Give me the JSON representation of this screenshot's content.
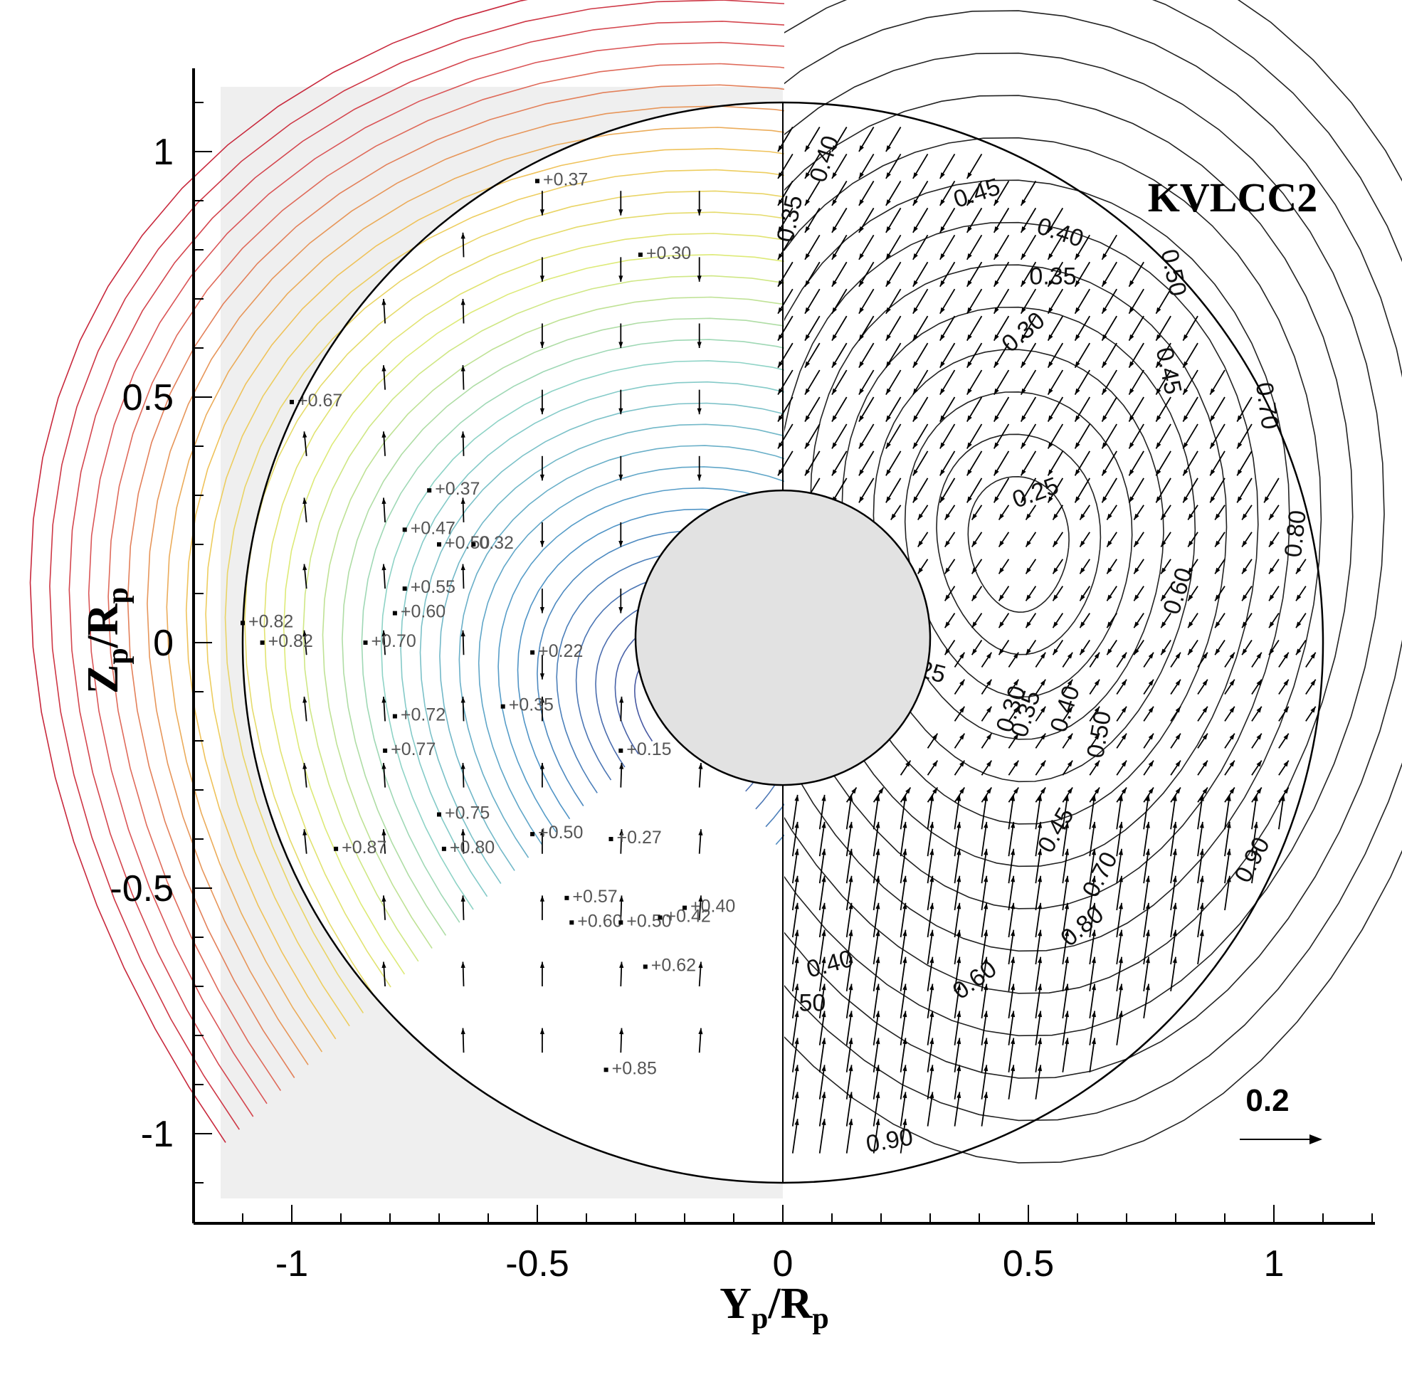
{
  "chart_data": {
    "type": "contour",
    "title": "KVLCC2",
    "xlabel_main": "Y",
    "xlabel_sub1": "p",
    "xlabel_mid": "/R",
    "xlabel_sub2": "p",
    "ylabel_main": "Z",
    "ylabel_sub1": "p",
    "ylabel_mid": "/R",
    "ylabel_sub2": "p",
    "xlim": [
      -1.2,
      1.2
    ],
    "ylim": [
      -1.17,
      1.17
    ],
    "x_ticks": [
      -1,
      -0.5,
      0,
      0.5,
      1
    ],
    "x_tick_labels": [
      "-1",
      "-0.5",
      "0",
      "0.5",
      "1"
    ],
    "y_ticks": [
      -1,
      -0.5,
      0,
      0.5,
      1
    ],
    "y_tick_labels": [
      "-1",
      "-0.5",
      "0",
      "0.5",
      "1"
    ],
    "propeller_disk_radius": 1.1,
    "hub_radius": 0.3,
    "vector_scale_label": "0.2",
    "left_half_point_labels": [
      {
        "x": -0.5,
        "y": 0.94,
        "label": "+0.37"
      },
      {
        "x": -0.29,
        "y": 0.79,
        "label": "+0.30"
      },
      {
        "x": -1.0,
        "y": 0.49,
        "label": "+0.67"
      },
      {
        "x": -0.72,
        "y": 0.31,
        "label": "+0.37"
      },
      {
        "x": -0.77,
        "y": 0.23,
        "label": "+0.47"
      },
      {
        "x": -0.7,
        "y": 0.2,
        "label": "+0.50"
      },
      {
        "x": -0.63,
        "y": 0.2,
        "label": "0.32"
      },
      {
        "x": -0.77,
        "y": 0.11,
        "label": "+0.55"
      },
      {
        "x": -0.79,
        "y": 0.06,
        "label": "+0.60"
      },
      {
        "x": -1.1,
        "y": 0.04,
        "label": "+0.82"
      },
      {
        "x": -1.06,
        "y": 0.0,
        "label": "+0.82"
      },
      {
        "x": -0.85,
        "y": 0.0,
        "label": "+0.70"
      },
      {
        "x": -0.51,
        "y": -0.02,
        "label": "+0.22"
      },
      {
        "x": -0.79,
        "y": -0.15,
        "label": "+0.72"
      },
      {
        "x": -0.57,
        "y": -0.13,
        "label": "+0.35"
      },
      {
        "x": -0.81,
        "y": -0.22,
        "label": "+0.77"
      },
      {
        "x": -0.33,
        "y": -0.22,
        "label": "+0.15"
      },
      {
        "x": -0.7,
        "y": -0.35,
        "label": "+0.75"
      },
      {
        "x": -0.91,
        "y": -0.42,
        "label": "+0.87"
      },
      {
        "x": -0.69,
        "y": -0.42,
        "label": "+0.80"
      },
      {
        "x": -0.51,
        "y": -0.39,
        "label": "+0.50"
      },
      {
        "x": -0.35,
        "y": -0.4,
        "label": "+0.27"
      },
      {
        "x": -0.44,
        "y": -0.52,
        "label": "+0.57"
      },
      {
        "x": -0.43,
        "y": -0.57,
        "label": "+0.60"
      },
      {
        "x": -0.33,
        "y": -0.57,
        "label": "+0.50"
      },
      {
        "x": -0.25,
        "y": -0.56,
        "label": "+0.42"
      },
      {
        "x": -0.2,
        "y": -0.54,
        "label": "+0.40"
      },
      {
        "x": -0.28,
        "y": -0.66,
        "label": "+0.62"
      },
      {
        "x": -0.36,
        "y": -0.87,
        "label": "+0.85"
      }
    ],
    "right_half_contour_labels": [
      {
        "x": 0.1,
        "y": 0.98,
        "label": "0.40",
        "angle": -72
      },
      {
        "x": 0.03,
        "y": 0.86,
        "label": "0.35",
        "angle": -78
      },
      {
        "x": 0.4,
        "y": 0.9,
        "label": "0.45",
        "angle": -18
      },
      {
        "x": 0.56,
        "y": 0.82,
        "label": "0.40",
        "angle": 18
      },
      {
        "x": 0.55,
        "y": 0.73,
        "label": "0.35",
        "angle": 0
      },
      {
        "x": 0.5,
        "y": 0.62,
        "label": "0.30",
        "angle": -40
      },
      {
        "x": 0.78,
        "y": 0.75,
        "label": "0.50",
        "angle": 78
      },
      {
        "x": 0.77,
        "y": 0.55,
        "label": "0.45",
        "angle": 78
      },
      {
        "x": 0.97,
        "y": 0.48,
        "label": "0.70",
        "angle": 82
      },
      {
        "x": 0.52,
        "y": 0.29,
        "label": "0.25",
        "angle": -20
      },
      {
        "x": 1.06,
        "y": 0.22,
        "label": "0.80",
        "angle": -84
      },
      {
        "x": 0.82,
        "y": 0.1,
        "label": "0.60",
        "angle": -72
      },
      {
        "x": 0.59,
        "y": -0.14,
        "label": "0.40",
        "angle": -72
      },
      {
        "x": 0.51,
        "y": -0.15,
        "label": "0.35",
        "angle": -72
      },
      {
        "x": 0.48,
        "y": -0.14,
        "label": "0.30",
        "angle": -72
      },
      {
        "x": 0.66,
        "y": -0.19,
        "label": "0.50",
        "angle": -80
      },
      {
        "x": 0.28,
        "y": -0.07,
        "label": "0.25",
        "angle": 15
      },
      {
        "x": 0.57,
        "y": -0.39,
        "label": "0.45",
        "angle": -60
      },
      {
        "x": 0.66,
        "y": -0.48,
        "label": "0.70",
        "angle": -62
      },
      {
        "x": 0.97,
        "y": -0.45,
        "label": "0.90",
        "angle": -62
      },
      {
        "x": 0.62,
        "y": -0.59,
        "label": "0.80",
        "angle": -40
      },
      {
        "x": 0.4,
        "y": -0.7,
        "label": "0.60",
        "angle": -36
      },
      {
        "x": 0.1,
        "y": -0.67,
        "label": "0.40",
        "angle": -15
      },
      {
        "x": 0.06,
        "y": -0.75,
        "label": "50",
        "angle": 0
      },
      {
        "x": 0.22,
        "y": -1.03,
        "label": "0.90",
        "angle": -10
      }
    ]
  }
}
